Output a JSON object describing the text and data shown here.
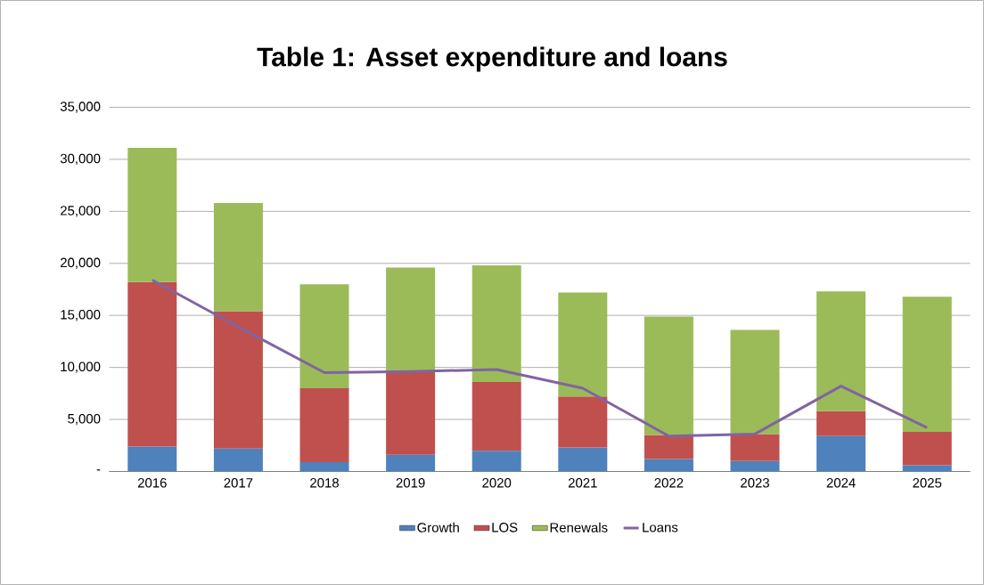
{
  "chart_data": {
    "type": "bar",
    "title": "Table 1: Asset expenditure and loans",
    "stacked": true,
    "categories": [
      "2016",
      "2017",
      "2018",
      "2019",
      "2020",
      "2021",
      "2022",
      "2023",
      "2024",
      "2025"
    ],
    "series": [
      {
        "name": "Growth",
        "color": "#4f81bd",
        "values": [
          2400,
          2200,
          900,
          1600,
          2000,
          2300,
          1200,
          1000,
          3400,
          600
        ]
      },
      {
        "name": "LOS",
        "color": "#c0504d",
        "values": [
          15800,
          13200,
          7100,
          8000,
          6600,
          4900,
          2300,
          2600,
          2400,
          3200
        ]
      },
      {
        "name": "Renewals",
        "color": "#9bbb59",
        "values": [
          12900,
          10400,
          10000,
          10000,
          11200,
          10000,
          11400,
          10000,
          11500,
          13000
        ]
      },
      {
        "name": "Loans",
        "type": "line",
        "color": "#8064a2",
        "values": [
          18400,
          13900,
          9500,
          9600,
          9800,
          8000,
          3400,
          3600,
          8200,
          4200
        ]
      }
    ],
    "ylim": [
      0,
      35000
    ],
    "yticks": [
      {
        "value": 0,
        "label": "-"
      },
      {
        "value": 5000,
        "label": "5,000"
      },
      {
        "value": 10000,
        "label": "10,000"
      },
      {
        "value": 15000,
        "label": "15,000"
      },
      {
        "value": 20000,
        "label": "20,000"
      },
      {
        "value": 25000,
        "label": "25,000"
      },
      {
        "value": 30000,
        "label": "30,000"
      },
      {
        "value": 35000,
        "label": "35,000"
      }
    ],
    "grid": "y",
    "legend": "bottom",
    "marker": "none",
    "line_style": "solid"
  }
}
